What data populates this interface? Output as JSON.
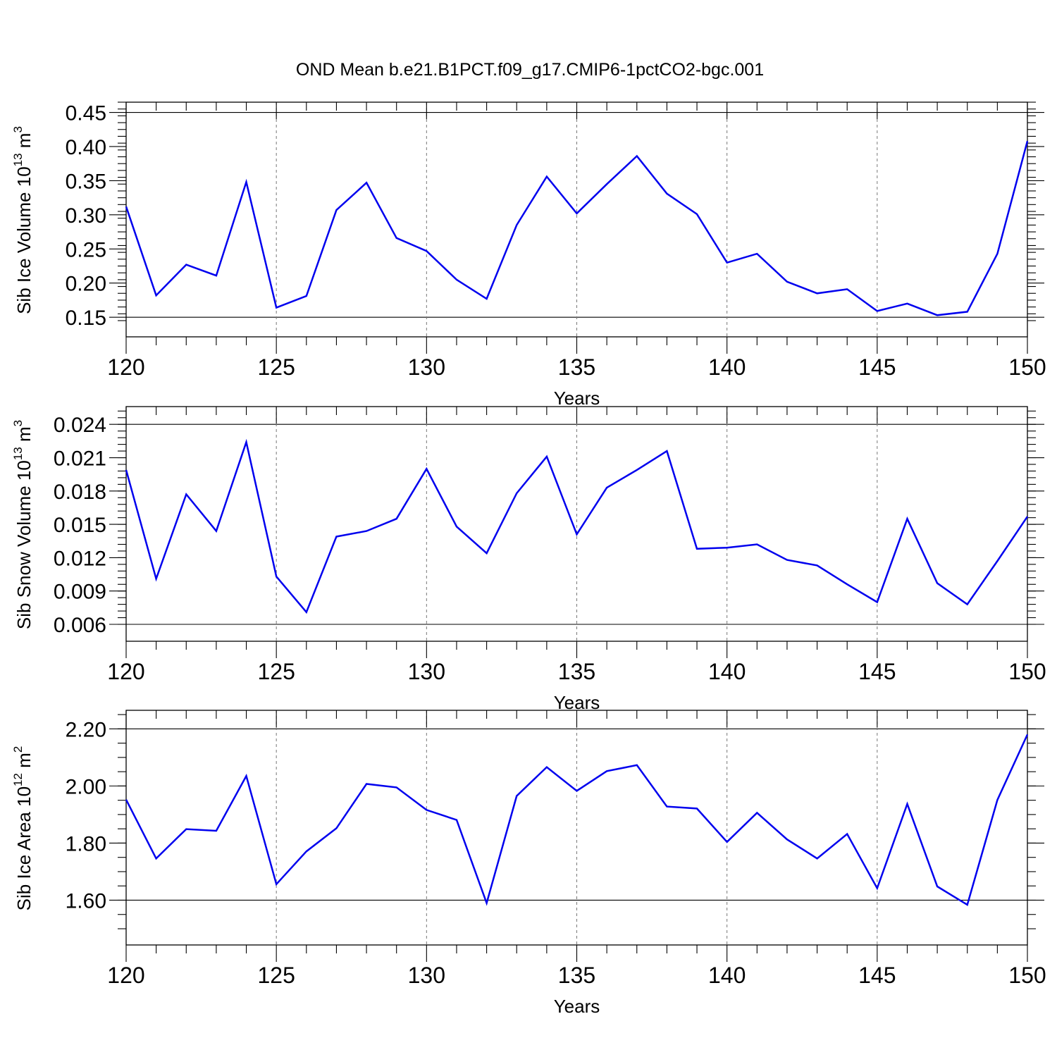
{
  "figure": {
    "title": "OND Mean b.e21.B1PCT.f09_g17.CMIP6-1pctCO2-bgc.001"
  },
  "chart_data": [
    {
      "type": "line",
      "ylabel": "Sib Ice Volume 10",
      "ylabel_exp": "13",
      "ylabel_unit": " m",
      "ylabel_unit_exp": "3",
      "xlabel": "Years",
      "xlim": [
        120,
        150
      ],
      "ylim": [
        0.145,
        0.465
      ],
      "xticks": [
        120,
        125,
        130,
        135,
        140,
        145,
        150
      ],
      "xtick_labels": [
        "120",
        "125",
        "130",
        "135",
        "140",
        "145",
        "150"
      ],
      "yticks": [
        0.15,
        0.2,
        0.25,
        0.3,
        0.35,
        0.4,
        0.45
      ],
      "ytick_labels": [
        "0.15",
        "0.20",
        "0.25",
        "0.30",
        "0.35",
        "0.40",
        "0.45"
      ],
      "y_minor_step": 0.01,
      "grid": "x-dashed",
      "color": "#0000ee",
      "x": [
        120,
        121,
        122,
        123,
        124,
        125,
        126,
        127,
        128,
        129,
        130,
        131,
        132,
        133,
        134,
        135,
        136,
        137,
        138,
        139,
        140,
        141,
        142,
        143,
        144,
        145,
        146,
        147,
        148,
        149,
        150
      ],
      "values": [
        0.312,
        0.182,
        0.227,
        0.211,
        0.348,
        0.164,
        0.181,
        0.307,
        0.347,
        0.266,
        0.247,
        0.205,
        0.177,
        0.285,
        0.356,
        0.302,
        0.345,
        0.386,
        0.331,
        0.301,
        0.23,
        0.243,
        0.202,
        0.185,
        0.191,
        0.159,
        0.17,
        0.153,
        0.158,
        0.243,
        0.408
      ]
    },
    {
      "type": "line",
      "ylabel": "Sib Snow Volume 10",
      "ylabel_exp": "13",
      "ylabel_unit": " m",
      "ylabel_unit_exp": "3",
      "xlabel": "Years",
      "xlim": [
        120,
        150
      ],
      "ylim": [
        0.006,
        0.0256
      ],
      "xticks": [
        120,
        125,
        130,
        135,
        140,
        145,
        150
      ],
      "xtick_labels": [
        "120",
        "125",
        "130",
        "135",
        "140",
        "145",
        "150"
      ],
      "yticks": [
        0.006,
        0.009,
        0.012,
        0.015,
        0.018,
        0.021,
        0.024
      ],
      "ytick_labels": [
        "0.006",
        "0.009",
        "0.012",
        "0.015",
        "0.018",
        "0.021",
        "0.024"
      ],
      "y_minor_step": 0.0006,
      "grid": "x-dashed",
      "color": "#0000ee",
      "x": [
        120,
        121,
        122,
        123,
        124,
        125,
        126,
        127,
        128,
        129,
        130,
        131,
        132,
        133,
        134,
        135,
        136,
        137,
        138,
        139,
        140,
        141,
        142,
        143,
        144,
        145,
        146,
        147,
        148,
        149,
        150
      ],
      "values": [
        0.0199,
        0.0101,
        0.0177,
        0.0144,
        0.0224,
        0.0103,
        0.0071,
        0.0139,
        0.0144,
        0.0155,
        0.02,
        0.0148,
        0.0124,
        0.0178,
        0.0211,
        0.0141,
        0.0183,
        0.0199,
        0.0216,
        0.0128,
        0.0129,
        0.0132,
        0.0118,
        0.0113,
        0.0096,
        0.008,
        0.0155,
        0.0097,
        0.0078,
        0.0117,
        0.0157
      ]
    },
    {
      "type": "line",
      "ylabel": "Sib Ice Area 10",
      "ylabel_exp": "12",
      "ylabel_unit": " m",
      "ylabel_unit_exp": "2",
      "xlabel": "Years",
      "xlim": [
        120,
        150
      ],
      "ylim": [
        1.5,
        2.265
      ],
      "xticks": [
        120,
        125,
        130,
        135,
        140,
        145,
        150
      ],
      "xtick_labels": [
        "120",
        "125",
        "130",
        "135",
        "140",
        "145",
        "150"
      ],
      "yticks": [
        1.6,
        1.8,
        2.0,
        2.2
      ],
      "ytick_labels": [
        "1.60",
        "1.80",
        "2.00",
        "2.20"
      ],
      "y_minor_step": 0.05,
      "grid": "x-dashed",
      "color": "#0000ee",
      "x": [
        120,
        121,
        122,
        123,
        124,
        125,
        126,
        127,
        128,
        129,
        130,
        131,
        132,
        133,
        134,
        135,
        136,
        137,
        138,
        139,
        140,
        141,
        142,
        143,
        144,
        145,
        146,
        147,
        148,
        149,
        150
      ],
      "values": [
        1.952,
        1.746,
        1.849,
        1.843,
        2.035,
        1.656,
        1.771,
        1.852,
        2.007,
        1.995,
        1.916,
        1.881,
        1.59,
        1.965,
        2.066,
        1.983,
        2.052,
        2.073,
        1.928,
        1.921,
        1.804,
        1.906,
        1.813,
        1.746,
        1.832,
        1.642,
        1.937,
        1.648,
        1.584,
        1.951,
        2.18
      ]
    }
  ]
}
